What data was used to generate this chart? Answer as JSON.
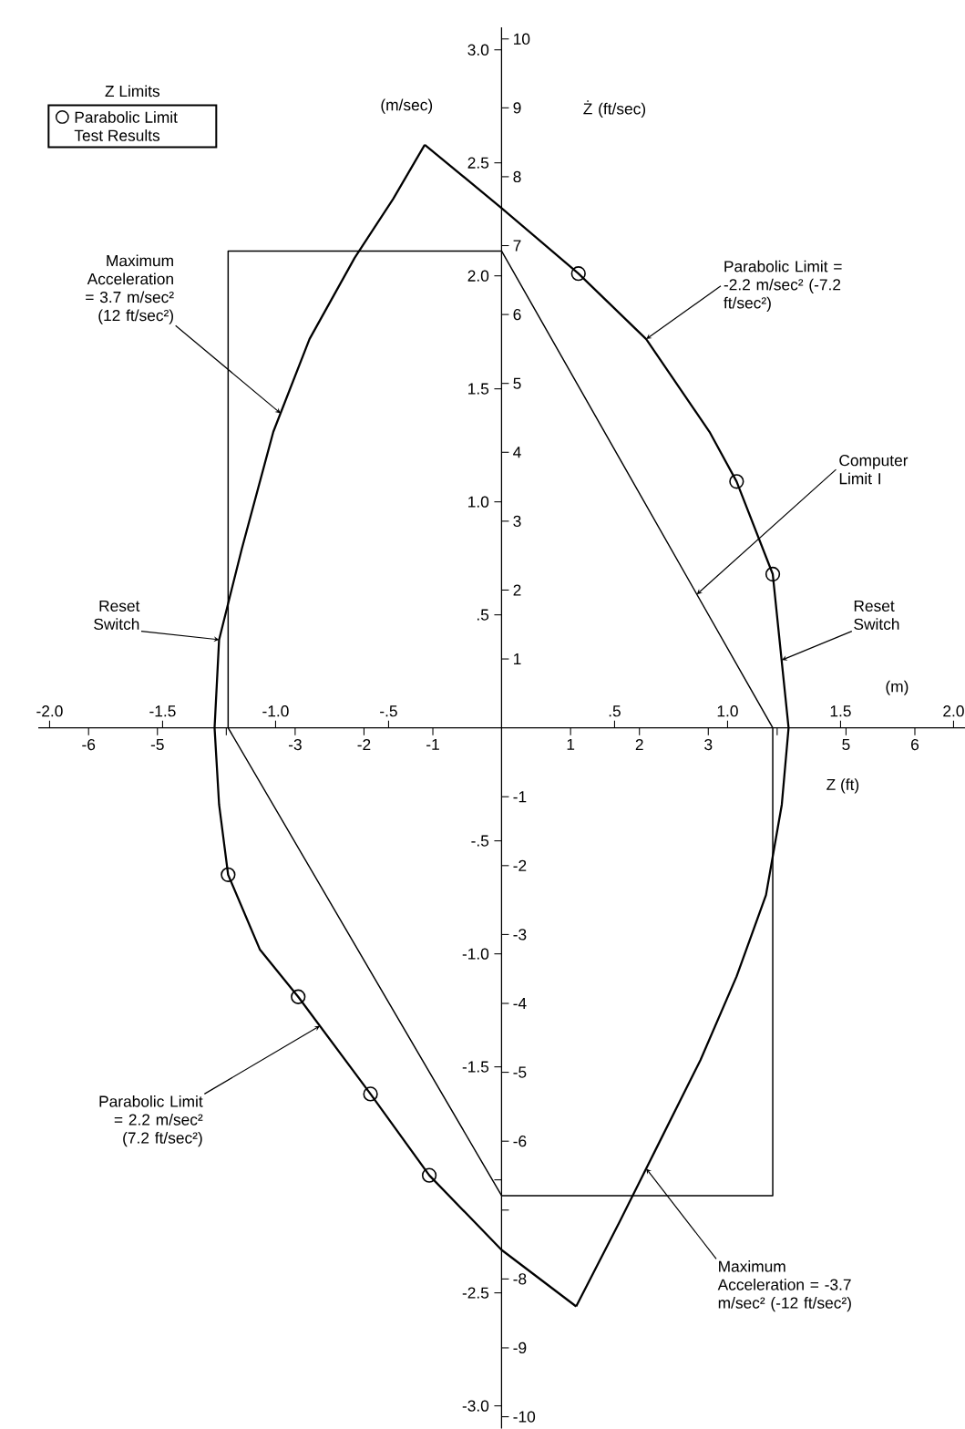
{
  "chart_data": {
    "type": "line",
    "legend_title": "Z Limits",
    "xlabel": "(m)",
    "x2label": "Z (ft)",
    "ylabel": "(m/sec)",
    "y2label": "Ż (ft/sec)",
    "xlim": [
      -2.05,
      2.1
    ],
    "x2lim": [
      -6.73,
      6.89
    ],
    "ylim": [
      -3.1,
      3.1
    ],
    "y2lim": [
      -10.17,
      10.17
    ],
    "xticks": [
      {
        "value": -2,
        "label": "-2.0"
      },
      {
        "value": -1.5,
        "label": "-1.5"
      },
      {
        "value": -1,
        "label": "-1.0"
      },
      {
        "value": -0.5,
        "label": "-.5"
      },
      {
        "value": 0.5,
        "label": ".5"
      },
      {
        "value": 1,
        "label": "1.0"
      },
      {
        "value": 1.5,
        "label": "1.5"
      },
      {
        "value": 2,
        "label": "2.0"
      }
    ],
    "x2ticks": [
      -6,
      -5,
      {
        "value": -4,
        "label": null
      },
      -3,
      -2,
      -1,
      1,
      2,
      3,
      {
        "value": 4,
        "label": null
      },
      5,
      6
    ],
    "yticks": [
      {
        "value": 3,
        "label": "3.0"
      },
      {
        "value": 2.5,
        "label": "2.5"
      },
      {
        "value": 2,
        "label": "2.0"
      },
      {
        "value": 1.5,
        "label": "1.5"
      },
      {
        "value": 1,
        "label": "1.0"
      },
      {
        "value": 0.5,
        "label": ".5"
      },
      {
        "value": -0.5,
        "label": "-.5"
      },
      {
        "value": -1,
        "label": "-1.0"
      },
      {
        "value": -1.5,
        "label": "-1.5"
      },
      {
        "value": -2,
        "label": null
      },
      {
        "value": -2.5,
        "label": "-2.5"
      },
      {
        "value": -3,
        "label": "-3.0"
      }
    ],
    "y2ticks": [
      1,
      2,
      3,
      4,
      5,
      6,
      7,
      8,
      9,
      10,
      -1,
      -2,
      -3,
      -4,
      -5,
      -6,
      {
        "value": -7,
        "label": null
      },
      -8,
      -9,
      -10
    ],
    "legend": "top left",
    "series": [
      {
        "color": "#000000",
        "x": [
          -0.34,
          -0.48,
          -0.65,
          -0.85,
          -1.01,
          -1.15,
          -1.25,
          -1.27,
          -1.25,
          -1.21,
          -1.07,
          -0.9,
          -0.58,
          -0.32,
          0,
          0.33
        ],
        "values": [
          2.58,
          2.34,
          2.08,
          1.72,
          1.31,
          0.79,
          0.39,
          0,
          -0.34,
          -0.65,
          -0.98,
          -1.19,
          -1.62,
          -1.98,
          -2.31,
          -2.56
        ]
      },
      {
        "name": "Parabolic Limit = -2.2 m/sec² (-7.2 ft/sec²)",
        "color": "#000000",
        "x": [
          -0.34,
          0,
          0.34,
          0.64,
          0.92,
          1.04,
          1.2,
          1.27
        ],
        "values": [
          2.58,
          2.3,
          2.01,
          1.72,
          1.31,
          1.09,
          0.68,
          0
        ]
      },
      {
        "color": "#000000",
        "x": [
          0.33,
          0.52,
          0.68,
          0.88,
          1.04,
          1.17,
          1.24,
          1.27
        ],
        "values": [
          -2.56,
          -2.19,
          -1.87,
          -1.47,
          -1.1,
          -0.74,
          -0.34,
          0
        ]
      },
      {
        "name": "Computer Limit I",
        "color": "#000000",
        "x": [
          -1.21,
          -1.21,
          0,
          1.2
        ],
        "values": [
          0,
          2.11,
          2.11,
          0
        ]
      },
      {
        "color": "#000000",
        "x": [
          -1.21,
          0,
          1.2,
          1.2
        ],
        "values": [
          0,
          -2.07,
          -2.07,
          0
        ]
      },
      {
        "type": "scatter",
        "name": "Parabolic Limit Test Results",
        "color": "#000000",
        "marker": "circle",
        "x": [
          0.34,
          1.04,
          1.2,
          -1.21,
          -0.9,
          -0.58,
          -0.32
        ],
        "values": [
          2.01,
          1.09,
          0.68,
          -0.65,
          -1.19,
          -1.62,
          -1.98
        ]
      }
    ],
    "annotations": [
      {
        "text": "Maximum Acceleration = 3.7 m/sec² (12 ft/sec²)",
        "x": -0.978,
        "y": 1.392
      },
      {
        "text": "Reset Switch",
        "x": -1.25,
        "y": 0.39
      },
      {
        "text": "Reset Switch",
        "x": 1.24,
        "y": 0.3
      },
      {
        "text": "Parabolic Limit = 2.2 m/sec² (7.2 ft/sec²)",
        "x": -0.804,
        "y": -1.319
      },
      {
        "text": "Maximum Acceleration = -3.7 m/sec² (-12 ft/sec²)",
        "x": 0.64,
        "y": -1.95
      }
    ]
  }
}
